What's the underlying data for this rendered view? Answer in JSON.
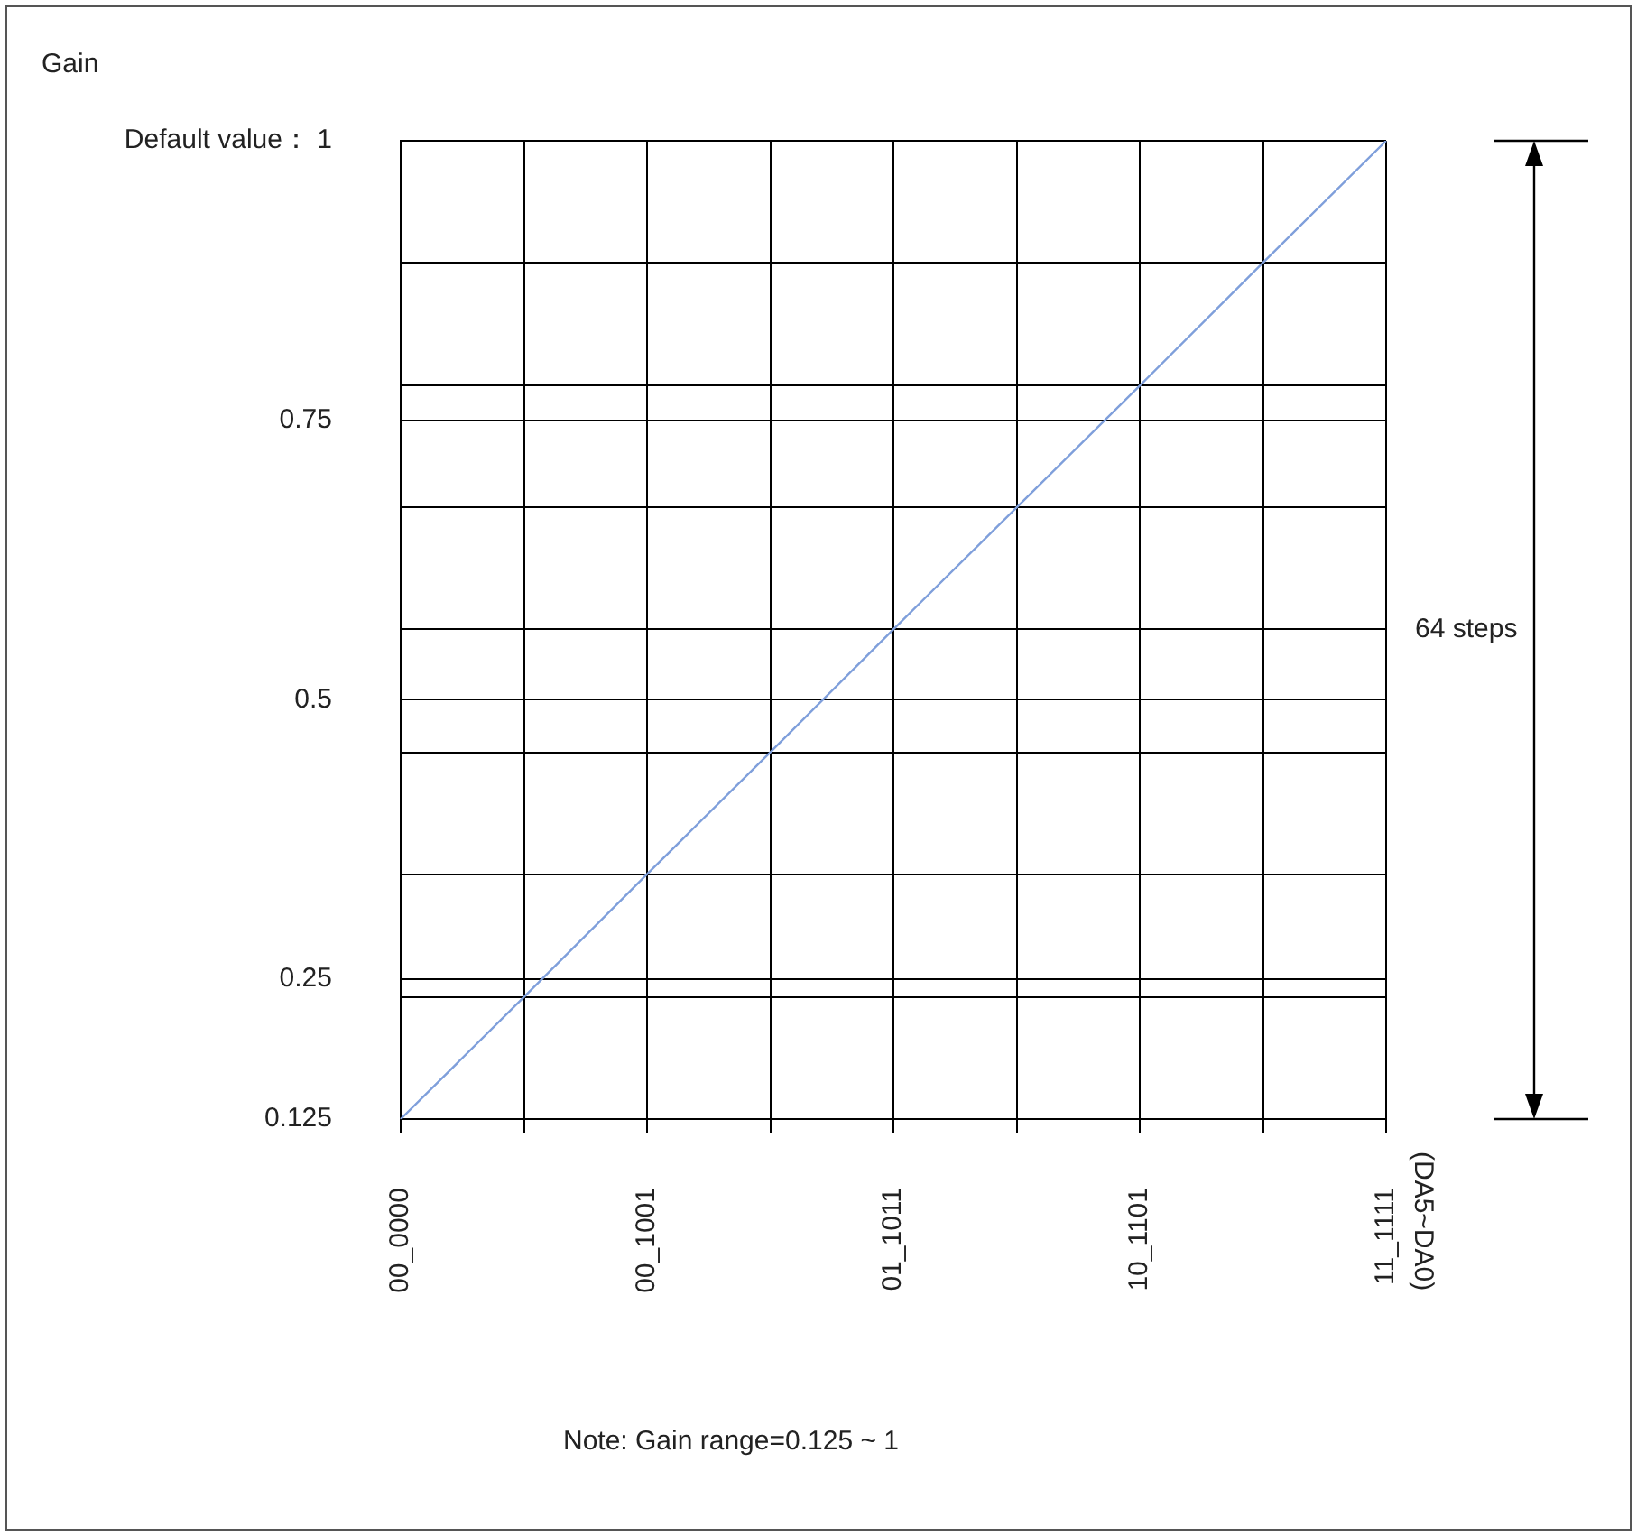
{
  "chart_data": {
    "type": "line",
    "ylabel": "Gain",
    "categories": [
      "00_0000",
      null,
      "00_1001",
      null,
      "01_1011",
      null,
      "10_1101",
      null,
      "11_1111"
    ],
    "series": [
      {
        "color": "#7f9fdb",
        "values": [
          0.125,
          0.234,
          0.344,
          0.453,
          0.563,
          0.672,
          0.781,
          0.891,
          1
        ]
      }
    ],
    "ylim": [
      0.125,
      1
    ],
    "yticks": [
      0.125,
      {
        "value": 0.234,
        "label": null
      },
      0.25,
      {
        "value": 0.344,
        "label": null
      },
      {
        "value": 0.453,
        "label": null
      },
      0.5,
      {
        "value": 0.563,
        "label": null
      },
      {
        "value": 0.672,
        "label": null
      },
      0.75,
      {
        "value": 0.781,
        "label": null
      },
      {
        "value": 0.891,
        "label": null
      },
      {
        "value": 1,
        "label": "Default value： 1"
      }
    ],
    "grid": true,
    "legend": false,
    "marker": "none",
    "line_style": "solid",
    "annotations": [
      "64 steps",
      "(DA5~DA0)",
      "Note: Gain range=0.125 ~ 1"
    ]
  }
}
